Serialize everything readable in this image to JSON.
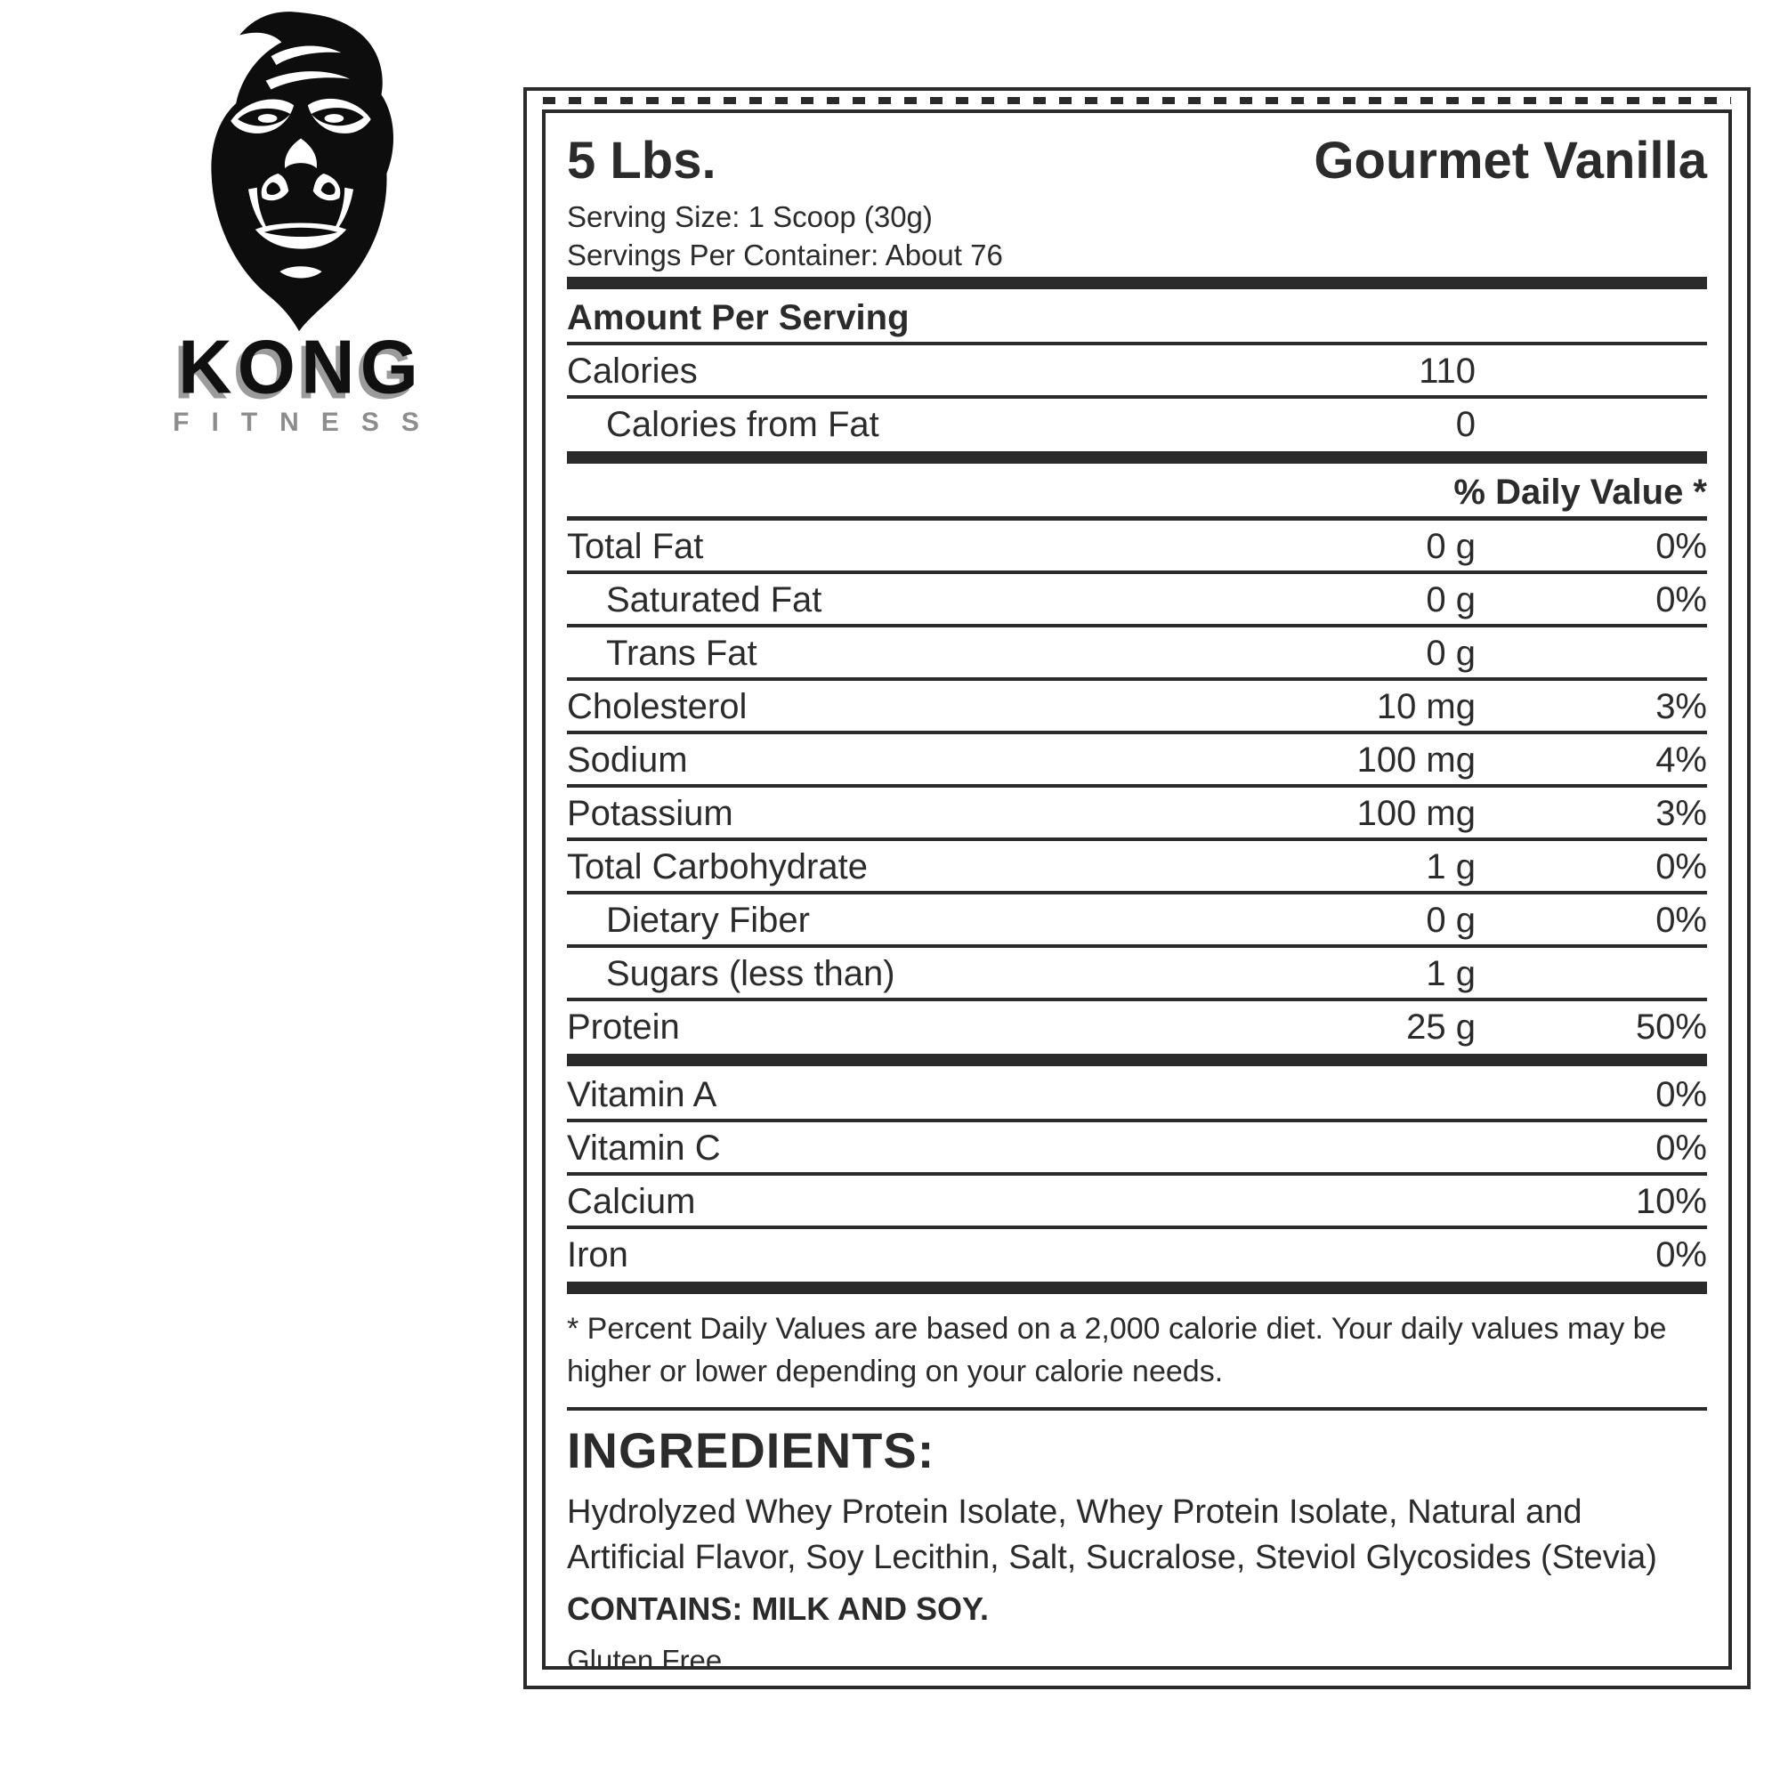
{
  "brand": {
    "name": "KONG",
    "tagline": "FITNESS",
    "logo_icon": "gorilla-head-icon"
  },
  "label": {
    "size": "5 Lbs.",
    "flavor": "Gourmet Vanilla",
    "serving_size": "Serving Size: 1 Scoop (30g)",
    "servings_per_container": "Servings Per Container: About 76",
    "nutrients": [
      {
        "type": "bar"
      },
      {
        "type": "heading",
        "label": "Amount Per Serving"
      },
      {
        "type": "row",
        "label": "Calories",
        "amount": "110",
        "dv": ""
      },
      {
        "type": "row",
        "label": "Calories from Fat",
        "amount": "0",
        "dv": "",
        "indent": true
      },
      {
        "type": "bar"
      },
      {
        "type": "dvheader",
        "label": "% Daily Value *"
      },
      {
        "type": "row",
        "label": "Total Fat",
        "amount": "0 g",
        "dv": "0%"
      },
      {
        "type": "row",
        "label": "Saturated Fat",
        "amount": "0 g",
        "dv": "0%",
        "indent": true
      },
      {
        "type": "row",
        "label": "Trans Fat",
        "amount": "0 g",
        "dv": "",
        "indent": true
      },
      {
        "type": "row",
        "label": "Cholesterol",
        "amount": "10 mg",
        "dv": "3%"
      },
      {
        "type": "row",
        "label": "Sodium",
        "amount": "100 mg",
        "dv": "4%"
      },
      {
        "type": "row",
        "label": "Potassium",
        "amount": "100 mg",
        "dv": "3%"
      },
      {
        "type": "row",
        "label": "Total Carbohydrate",
        "amount": "1 g",
        "dv": "0%"
      },
      {
        "type": "row",
        "label": "Dietary Fiber",
        "amount": "0 g",
        "dv": "0%",
        "indent": true
      },
      {
        "type": "row",
        "label": "Sugars (less than)",
        "amount": "1 g",
        "dv": "",
        "indent": true
      },
      {
        "type": "row",
        "label": "Protein",
        "amount": "25 g",
        "dv": "50%"
      },
      {
        "type": "bar"
      },
      {
        "type": "row",
        "label": "Vitamin A",
        "amount": "",
        "dv": "0%"
      },
      {
        "type": "row",
        "label": "Vitamin C",
        "amount": "",
        "dv": "0%"
      },
      {
        "type": "row",
        "label": "Calcium",
        "amount": "",
        "dv": "10%"
      },
      {
        "type": "row",
        "label": "Iron",
        "amount": "",
        "dv": "0%"
      },
      {
        "type": "bar"
      }
    ],
    "footnote": "* Percent Daily Values are based on a 2,000 calorie diet. Your daily values may be higher or lower depending on your calorie needs.",
    "ingredients_heading": "INGREDIENTS:",
    "ingredients": "Hydrolyzed Whey Protein Isolate, Whey Protein Isolate, Natural and Artificial Flavor, Soy Lecithin, Salt, Sucralose, Steviol Glycosides (Stevia)",
    "contains": "CONTAINS: MILK AND SOY.",
    "gluten_free": "Gluten Free"
  },
  "colors": {
    "ink": "#2b2b2b",
    "logo_black": "#101010",
    "logo_shadow_gray": "#9b9b9b",
    "tagline_gray": "#8d8d8d"
  }
}
